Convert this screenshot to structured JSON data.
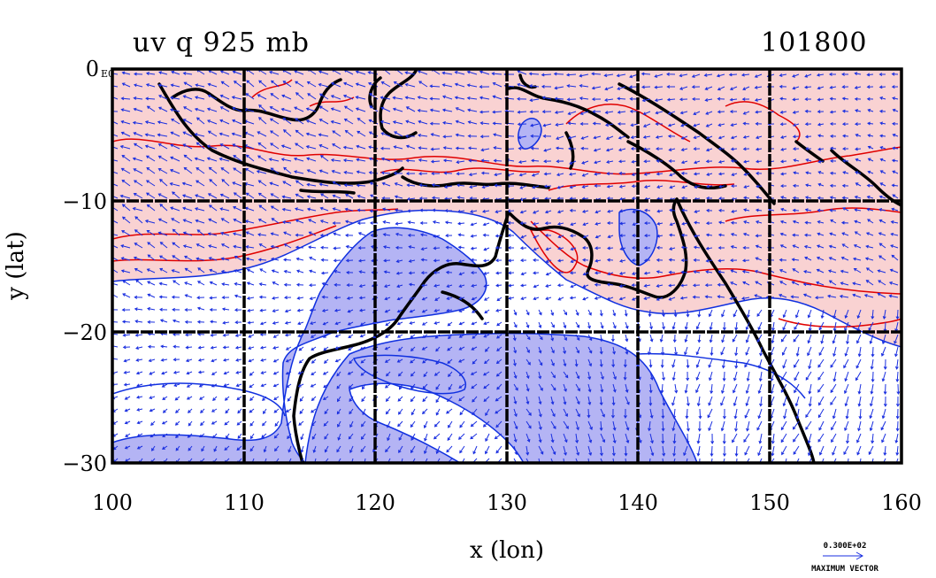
{
  "chart_data": {
    "type": "heatmap",
    "title": "uv q 925 mb",
    "date_label": "101800",
    "xlabel": "x (lon)",
    "ylabel": "y (lat)",
    "xlim": [
      100,
      160
    ],
    "ylim": [
      -30,
      0
    ],
    "x_ticks": [
      100,
      110,
      120,
      130,
      140,
      150,
      160
    ],
    "x_tick_labels": [
      "100",
      "110",
      "120",
      "130",
      "140",
      "150",
      "160"
    ],
    "y_ticks": [
      0,
      -10,
      -20,
      -30
    ],
    "y_tick_labels": [
      "0",
      "−10",
      "−20",
      "−30"
    ],
    "y_top_suffix": "E0",
    "grid": true,
    "fields": [
      "uv (wind vectors)",
      "q (contours)"
    ],
    "contour_colors": {
      "positive": "#e00000",
      "negative": "#1030e0"
    },
    "shade_colors": {
      "positive": "#f9d2d2",
      "negative": "#b4b4f4"
    },
    "coastline_color": "#000000",
    "vector_color": "#1a2fe0",
    "reference_vector": {
      "value_label": "0.300E+02",
      "caption": "MAXIMUM VECTOR"
    }
  }
}
